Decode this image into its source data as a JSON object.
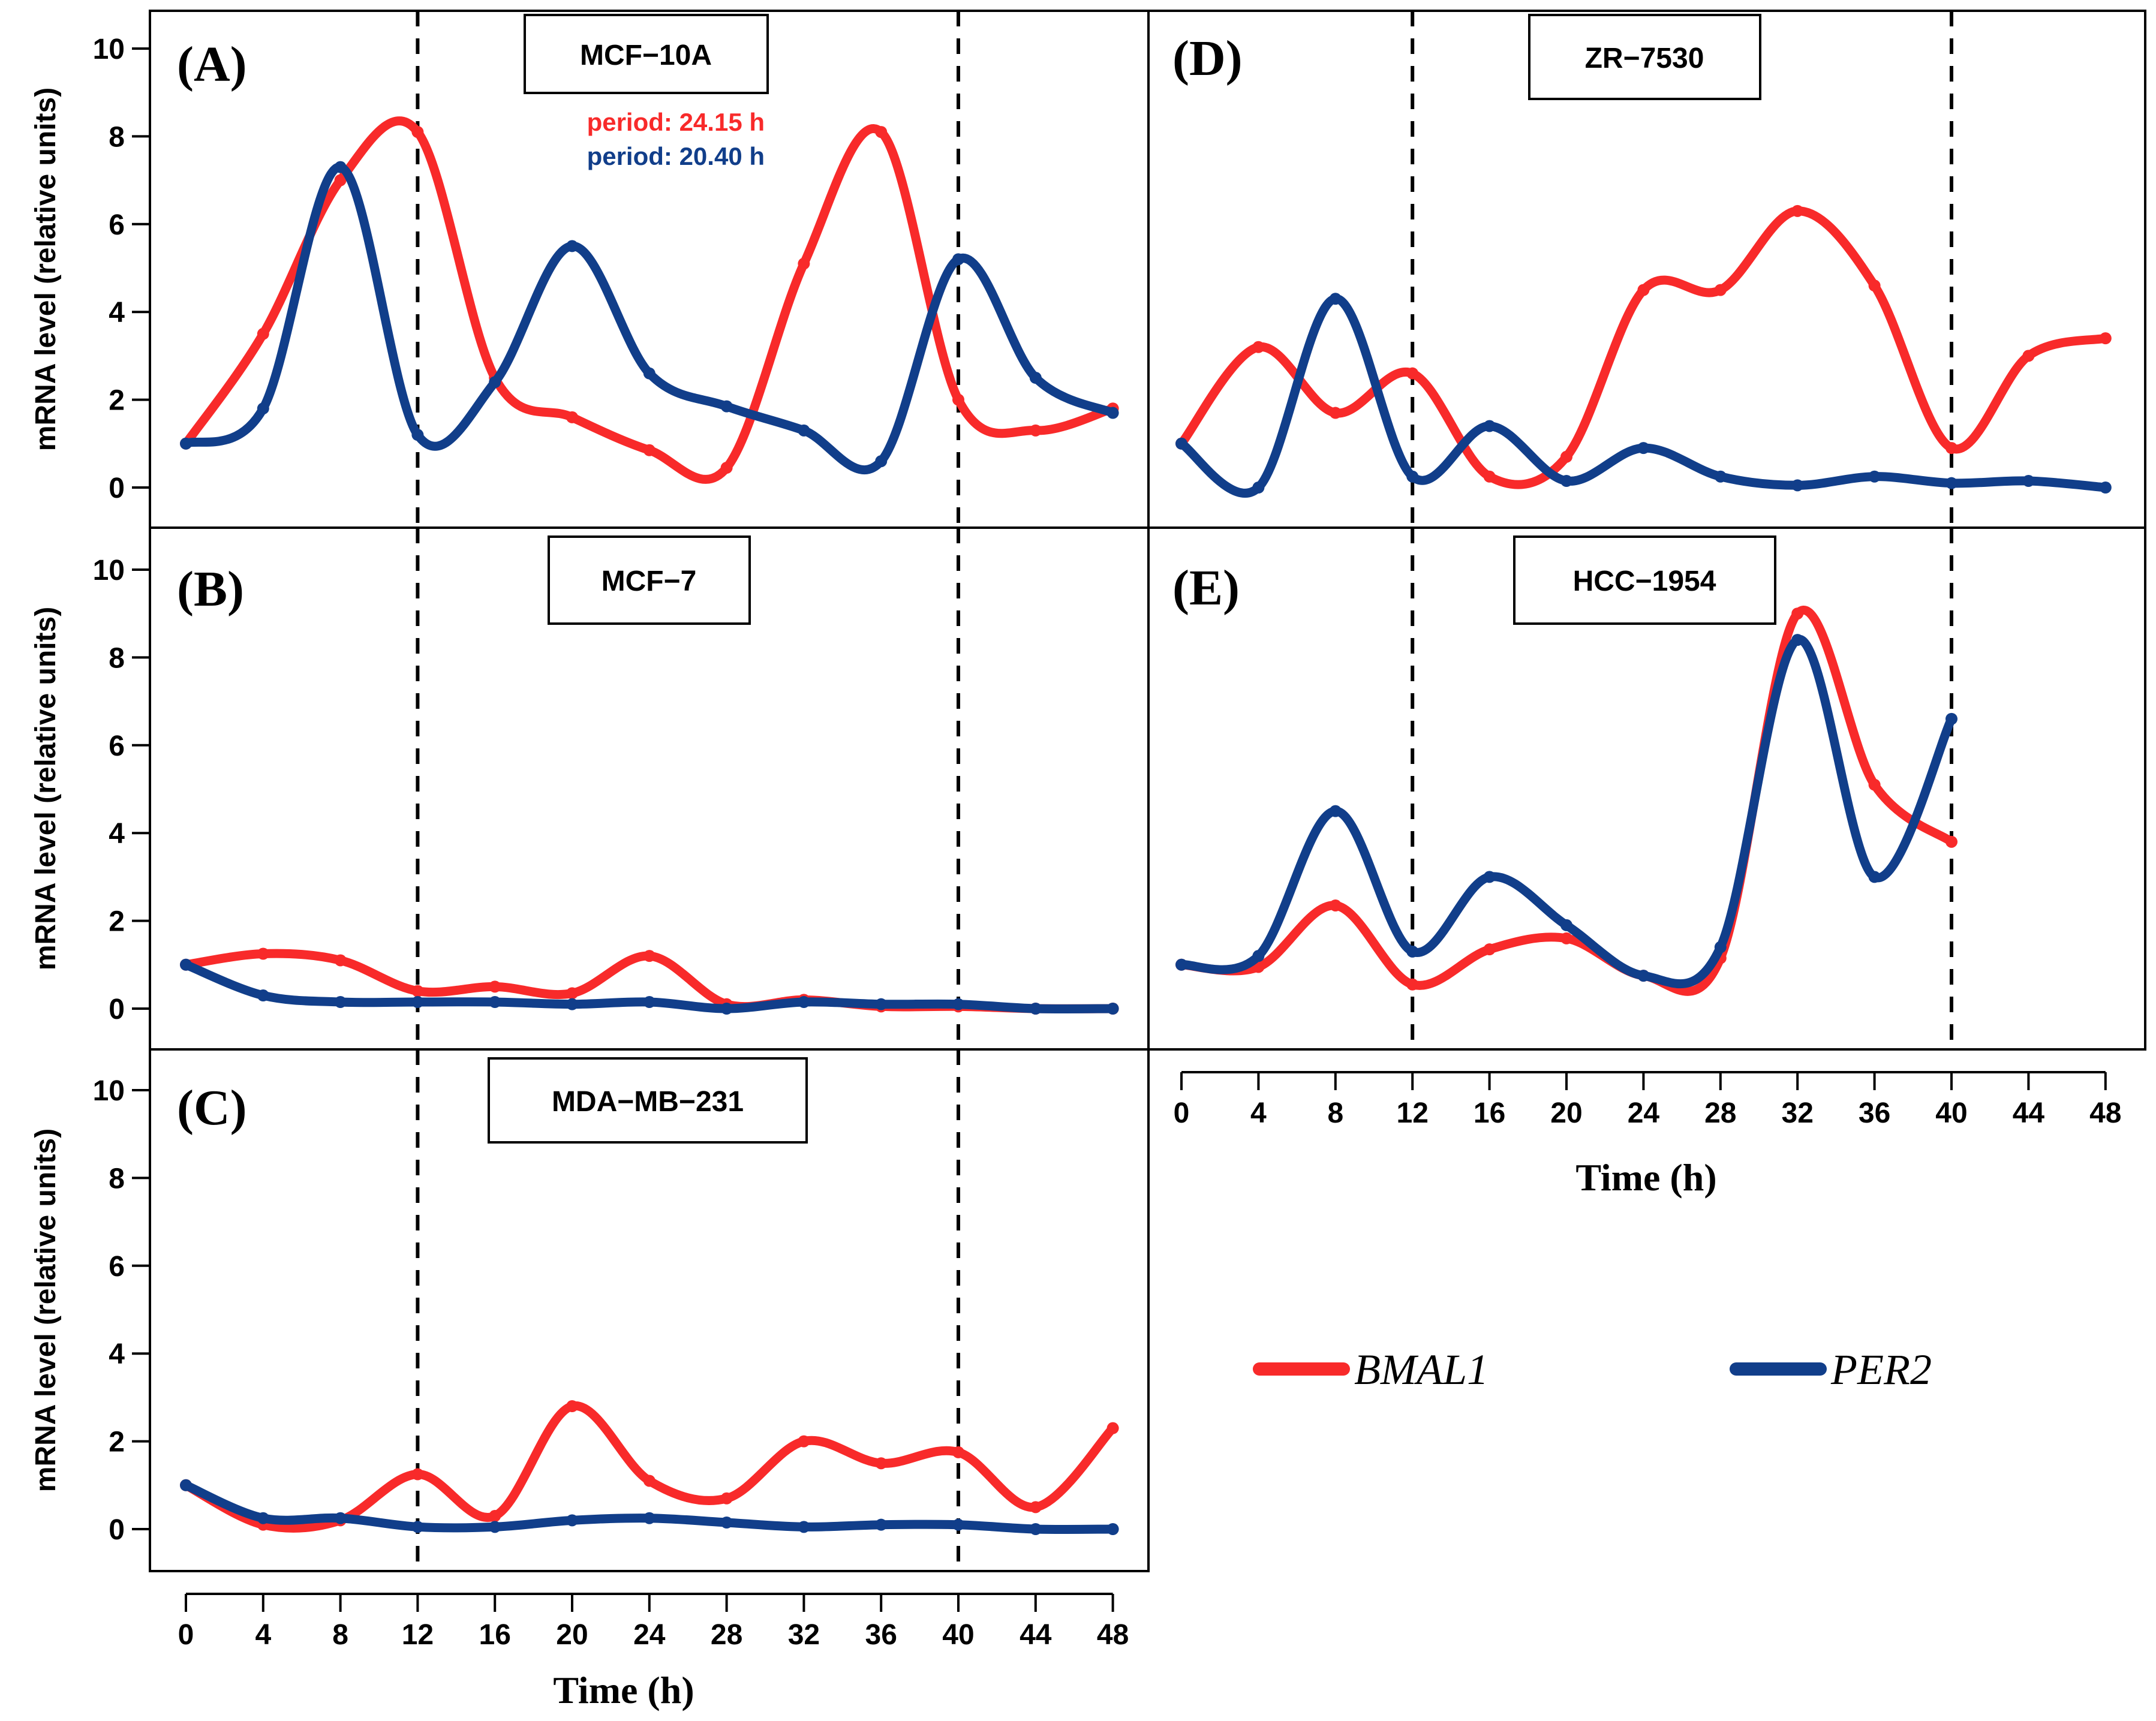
{
  "colors": {
    "bmal1": "#f82a2a",
    "per2": "#113e8a",
    "axis": "#000000"
  },
  "legend": {
    "bmal1_label": "BMAL1",
    "per2_label": "PER2"
  },
  "period_annotations": {
    "bmal1": "period: 24.15 h",
    "per2": "period: 20.40 h"
  },
  "axis_text": {
    "ylabel": "mRNA level (relative units)",
    "xlabel": "Time (h)"
  },
  "chart_data": [
    {
      "type": "line",
      "panel": "(A)",
      "title": "MCF−10A",
      "x": [
        0,
        4,
        8,
        12,
        16,
        20,
        24,
        28,
        32,
        36,
        40,
        44,
        48
      ],
      "ylim": [
        -0.6,
        10.6
      ],
      "xlim": [
        -2,
        50
      ],
      "reference_lines_x": [
        12,
        40
      ],
      "yticks": [
        "0",
        "2",
        "4",
        "6",
        "8",
        "10"
      ],
      "xticks": [],
      "series": [
        {
          "name": "BMAL1",
          "values": [
            1.0,
            3.5,
            7.0,
            8.1,
            2.5,
            1.6,
            0.85,
            0.45,
            5.1,
            8.1,
            2.0,
            1.3,
            1.8
          ]
        },
        {
          "name": "PER2",
          "values": [
            1.0,
            1.8,
            7.3,
            1.2,
            2.4,
            5.5,
            2.6,
            1.85,
            1.3,
            0.6,
            5.2,
            2.5,
            1.7
          ]
        }
      ]
    },
    {
      "type": "line",
      "panel": "(B)",
      "title": "MCF−7",
      "x": [
        0,
        4,
        8,
        12,
        16,
        20,
        24,
        28,
        32,
        36,
        40,
        44,
        48
      ],
      "ylim": [
        -0.6,
        10.6
      ],
      "xlim": [
        -2,
        50
      ],
      "reference_lines_x": [
        12,
        40
      ],
      "yticks": [
        "0",
        "2",
        "4",
        "6",
        "8",
        "10"
      ],
      "xticks": [],
      "series": [
        {
          "name": "BMAL1",
          "values": [
            1.0,
            1.25,
            1.1,
            0.4,
            0.5,
            0.35,
            1.2,
            0.1,
            0.2,
            0.05,
            0.05,
            0.0,
            0.0
          ]
        },
        {
          "name": "PER2",
          "values": [
            1.0,
            0.3,
            0.15,
            0.15,
            0.15,
            0.1,
            0.15,
            0.0,
            0.15,
            0.1,
            0.1,
            0.0,
            0.0
          ]
        }
      ]
    },
    {
      "type": "line",
      "panel": "(C)",
      "title": "MDA−MB−231",
      "x": [
        0,
        4,
        8,
        12,
        16,
        20,
        24,
        28,
        32,
        36,
        40,
        44,
        48
      ],
      "ylim": [
        -0.6,
        10.6
      ],
      "xlim": [
        -2,
        50
      ],
      "reference_lines_x": [
        12,
        40
      ],
      "yticks": [
        "0",
        "2",
        "4",
        "6",
        "8",
        "10"
      ],
      "xticks": [
        "0",
        "4",
        "8",
        "12",
        "16",
        "20",
        "24",
        "28",
        "32",
        "36",
        "40",
        "44",
        "48"
      ],
      "series": [
        {
          "name": "BMAL1",
          "values": [
            1.0,
            0.1,
            0.2,
            1.25,
            0.3,
            2.8,
            1.1,
            0.7,
            2.0,
            1.5,
            1.75,
            0.5,
            2.3
          ]
        },
        {
          "name": "PER2",
          "values": [
            1.0,
            0.25,
            0.25,
            0.05,
            0.05,
            0.2,
            0.25,
            0.15,
            0.05,
            0.1,
            0.1,
            0.0,
            0.0
          ]
        }
      ]
    },
    {
      "type": "line",
      "panel": "(D)",
      "title": "ZR−7530",
      "x": [
        0,
        4,
        8,
        12,
        16,
        20,
        24,
        28,
        32,
        36,
        40,
        44,
        48
      ],
      "ylim": [
        -0.6,
        10.6
      ],
      "xlim": [
        -2,
        50
      ],
      "reference_lines_x": [
        12,
        40
      ],
      "yticks": [],
      "xticks": [],
      "series": [
        {
          "name": "BMAL1",
          "values": [
            1.0,
            3.2,
            1.7,
            2.6,
            0.25,
            0.7,
            4.5,
            4.5,
            6.3,
            4.6,
            0.9,
            3.0,
            3.4
          ]
        },
        {
          "name": "PER2",
          "values": [
            1.0,
            0.0,
            4.3,
            0.25,
            1.4,
            0.15,
            0.9,
            0.25,
            0.05,
            0.25,
            0.1,
            0.15,
            0.0
          ]
        }
      ]
    },
    {
      "type": "line",
      "panel": "(E)",
      "title": "HCC−1954",
      "x": [
        0,
        4,
        8,
        12,
        16,
        20,
        24,
        28,
        32,
        36,
        40
      ],
      "ylim": [
        -0.6,
        10.6
      ],
      "xlim": [
        -2,
        50
      ],
      "reference_lines_x": [
        12,
        40
      ],
      "yticks": [],
      "xticks": [
        "0",
        "4",
        "8",
        "12",
        "16",
        "20",
        "24",
        "28",
        "32",
        "36",
        "40",
        "44",
        "48"
      ],
      "series": [
        {
          "name": "BMAL1",
          "values": [
            1.0,
            0.95,
            2.35,
            0.55,
            1.35,
            1.6,
            0.75,
            1.15,
            9.0,
            5.1,
            3.8
          ]
        },
        {
          "name": "PER2",
          "values": [
            1.0,
            1.2,
            4.5,
            1.3,
            3.0,
            1.9,
            0.75,
            1.4,
            8.4,
            3.0,
            6.6
          ]
        }
      ]
    }
  ]
}
